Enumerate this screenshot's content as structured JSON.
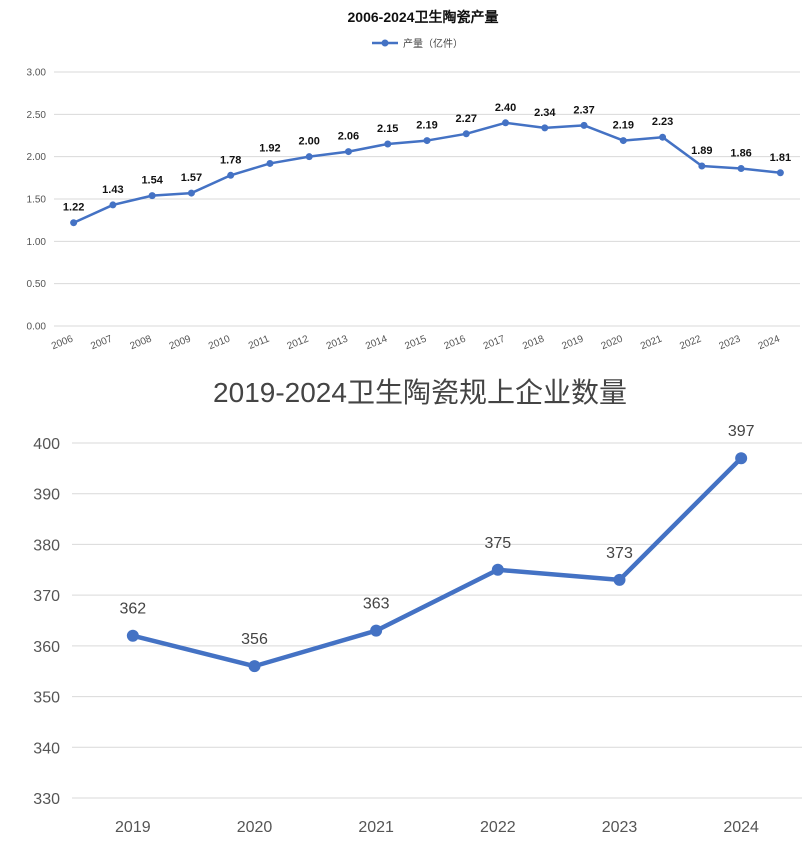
{
  "colors": {
    "series": "#4472C4",
    "grid": "#d9d9d9",
    "text": "#444444"
  },
  "chart_data": [
    {
      "type": "line",
      "title": "2006-2024卫生陶瓷产量",
      "legend": {
        "label": "产量（亿件）",
        "position": "top"
      },
      "x": [
        "2006",
        "2007",
        "2008",
        "2009",
        "2010",
        "2011",
        "2012",
        "2013",
        "2014",
        "2015",
        "2016",
        "2017",
        "2018",
        "2019",
        "2020",
        "2021",
        "2022",
        "2023",
        "2024"
      ],
      "series": [
        {
          "name": "产量（亿件）",
          "values": [
            1.22,
            1.43,
            1.54,
            1.57,
            1.78,
            1.92,
            2.0,
            2.06,
            2.15,
            2.19,
            2.27,
            2.4,
            2.34,
            2.37,
            2.19,
            2.23,
            1.89,
            1.86,
            1.81
          ]
        }
      ],
      "value_labels": [
        "1.22",
        "1.43",
        "1.54",
        "1.57",
        "1.78",
        "1.92",
        "2.00",
        "2.06",
        "2.15",
        "2.19",
        "2.27",
        "2.40",
        "2.34",
        "2.37",
        "2.19",
        "2.23",
        "1.89",
        "1.86",
        "1.81"
      ],
      "yticks": [
        "0.00",
        "0.50",
        "1.00",
        "1.50",
        "2.00",
        "2.50",
        "3.00"
      ],
      "ylim": [
        0,
        3
      ],
      "grid": true
    },
    {
      "type": "line",
      "title": "2019-2024卫生陶瓷规上企业数量",
      "x": [
        "2019",
        "2020",
        "2021",
        "2022",
        "2023",
        "2024"
      ],
      "series": [
        {
          "name": "规上企业数量",
          "values": [
            362,
            356,
            363,
            375,
            373,
            397
          ]
        }
      ],
      "value_labels": [
        "362",
        "356",
        "363",
        "375",
        "373",
        "397"
      ],
      "yticks": [
        "330",
        "340",
        "350",
        "360",
        "370",
        "380",
        "390",
        "400"
      ],
      "ylim": [
        330,
        400
      ],
      "grid": true
    }
  ]
}
